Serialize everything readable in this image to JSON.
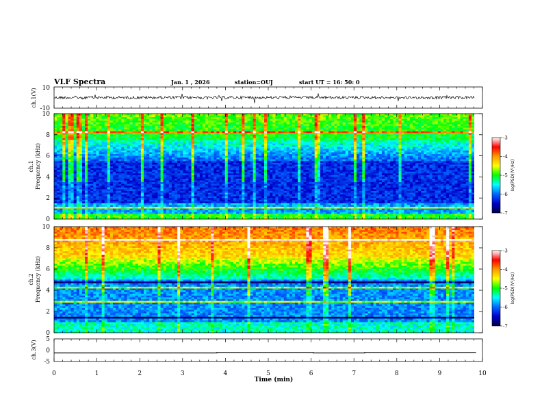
{
  "header": {
    "title": "VLF Spectra",
    "date": "Jan. 1 , 2026",
    "station": "station=OUJ",
    "start": "start  UT =   16: 50: 0"
  },
  "colorbar": {
    "label": "log(PSD)(V²/Hz)",
    "ticks": [
      "-3",
      "-4",
      "-5",
      "-6",
      "-7"
    ],
    "stops": [
      "#ffffff",
      "#ff0000",
      "#ff9900",
      "#ffff00",
      "#00ff00",
      "#00ffff",
      "#0066ff",
      "#0000cc",
      "#000044"
    ]
  },
  "chart_data": [
    {
      "type": "line",
      "ylabel": "ch.1(V)",
      "ylim": [
        -10,
        10
      ],
      "ytick_labels": [
        "10",
        "-10"
      ],
      "xlim": [
        0,
        10
      ],
      "series": [
        {
          "values_note": "",
          "level": 0
        }
      ]
    },
    {
      "type": "heatmap",
      "ylabel": "ch.1\nFrequency (kHz)",
      "ylim": [
        0,
        10
      ],
      "ytick_labels": [
        "10",
        "8",
        "6",
        "4",
        "2",
        "0"
      ],
      "xlim": [
        0,
        10
      ],
      "zlim": [
        -7,
        -3
      ]
    },
    {
      "type": "heatmap",
      "ylabel": "ch.2\nFrequency (kHz)",
      "ylim": [
        0,
        10
      ],
      "ytick_labels": [
        "10",
        "8",
        "6",
        "4",
        "2",
        "0"
      ],
      "xlim": [
        0,
        10
      ],
      "zlim": [
        -7,
        -3
      ]
    },
    {
      "type": "line",
      "ylabel": "ch.3(V)",
      "ylim": [
        -5,
        5
      ],
      "ytick_labels": [
        "5",
        "0",
        "-5"
      ],
      "xlim": [
        0,
        10
      ],
      "xlabel": "Time (min)",
      "xtick_labels": [
        "0",
        "1",
        "2",
        "3",
        "4",
        "5",
        "6",
        "7",
        "8",
        "9",
        "10"
      ],
      "x": [
        0,
        3.8,
        3.8,
        6.05,
        6.05,
        7.25,
        7.25,
        9.85
      ],
      "y": [
        -1.2,
        -1.2,
        -1.0,
        -1.0,
        -1.2,
        -1.2,
        -1.0,
        -1.0
      ]
    }
  ]
}
